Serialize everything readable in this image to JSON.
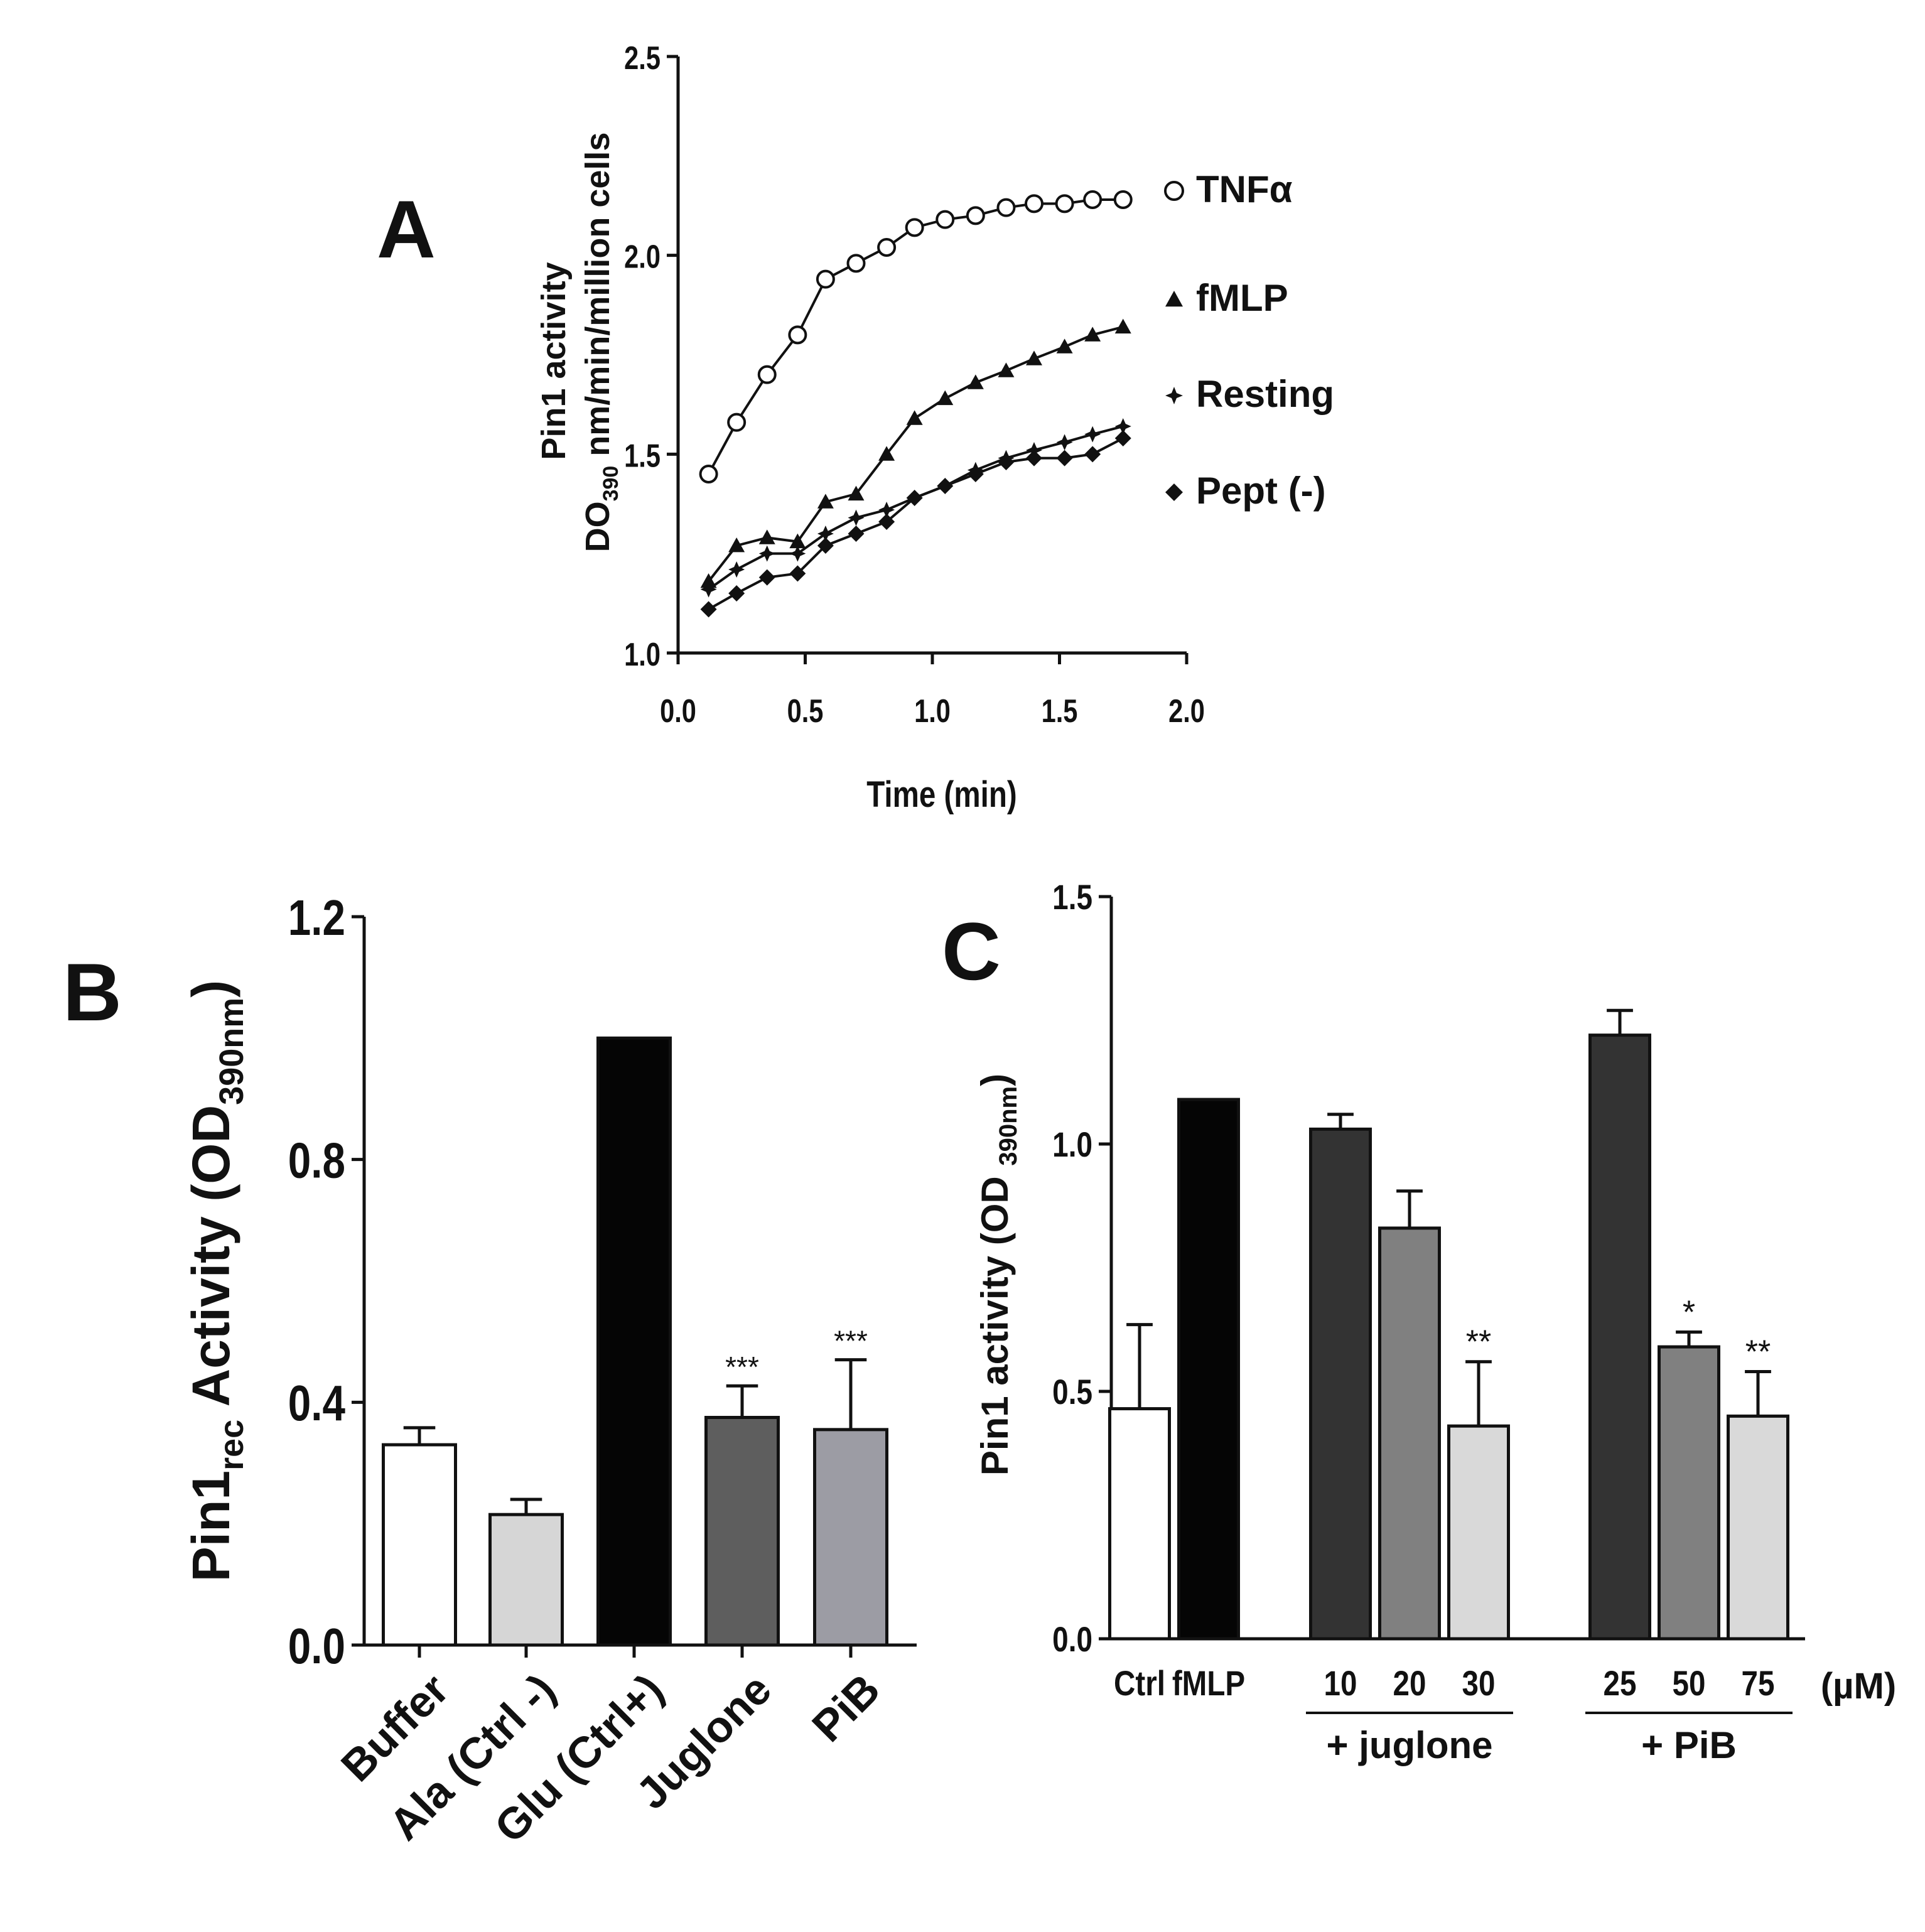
{
  "panels": {
    "a": {
      "letter": "A"
    },
    "b": {
      "letter": "B"
    },
    "c": {
      "letter": "C"
    }
  },
  "colors": {
    "axis": "#111111",
    "white": "#ffffff",
    "light_gray": "#d6d6d6",
    "black": "#050505",
    "dark_gray": "#5e5e5e",
    "mid_gray": "#9c9ca4",
    "charcoal": "#333333",
    "medium": "#808080",
    "pale": "#d9d9d9"
  },
  "chart_data": [
    {
      "id": "A",
      "type": "line",
      "ylabel_line1": "Pin1 activity",
      "ylabel_line2_pre": "DO",
      "ylabel_line2_sub": "390",
      "ylabel_line2_post": " nm/min/million cells",
      "xlabel": "Time (min)",
      "xlim": [
        0.0,
        2.0
      ],
      "ylim": [
        1.0,
        2.5
      ],
      "xticks": [
        "0.0",
        "0.5",
        "1.0",
        "1.5",
        "2.0"
      ],
      "yticks": [
        "1.0",
        "1.5",
        "2.0",
        "2.5"
      ],
      "x": [
        0.12,
        0.23,
        0.35,
        0.47,
        0.58,
        0.7,
        0.82,
        0.93,
        1.05,
        1.17,
        1.29,
        1.4,
        1.52,
        1.63,
        1.75
      ],
      "series": [
        {
          "name": "TNFα",
          "marker": "circle",
          "values": [
            1.45,
            1.58,
            1.7,
            1.8,
            1.94,
            1.98,
            2.02,
            2.07,
            2.09,
            2.1,
            2.12,
            2.13,
            2.13,
            2.14,
            2.14
          ]
        },
        {
          "name": "fMLP",
          "marker": "triangle",
          "values": [
            1.18,
            1.27,
            1.29,
            1.28,
            1.38,
            1.4,
            1.5,
            1.59,
            1.64,
            1.68,
            1.71,
            1.74,
            1.77,
            1.8,
            1.82
          ]
        },
        {
          "name": "Resting",
          "marker": "star",
          "values": [
            1.16,
            1.21,
            1.25,
            1.25,
            1.3,
            1.34,
            1.36,
            1.39,
            1.42,
            1.46,
            1.49,
            1.51,
            1.53,
            1.55,
            1.57
          ]
        },
        {
          "name": "Pept (-)",
          "marker": "diamond",
          "values": [
            1.11,
            1.15,
            1.19,
            1.2,
            1.27,
            1.3,
            1.33,
            1.39,
            1.42,
            1.45,
            1.48,
            1.49,
            1.49,
            1.5,
            1.54
          ]
        }
      ]
    },
    {
      "id": "B",
      "type": "bar",
      "ylabel_pre": "Pin1",
      "ylabel_sub": "rec",
      "ylabel_mid": " Activity (OD",
      "ylabel_sub2": "390nm",
      "ylabel_post": ")",
      "ylim": [
        0.0,
        1.2
      ],
      "yticks": [
        "0.0",
        "0.4",
        "0.8",
        "1.2"
      ],
      "categories": [
        "Buffer",
        "Ala (Ctrl -)",
        "Glu (Ctrl+)",
        "Juglone",
        "PiB"
      ],
      "values": [
        0.33,
        0.215,
        1.0,
        0.375,
        0.355
      ],
      "errors": [
        0.028,
        0.025,
        0.0,
        0.052,
        0.115
      ],
      "significance": [
        "",
        "",
        "",
        "***",
        "***"
      ],
      "fills": [
        "#ffffff",
        "#d6d6d6",
        "#050505",
        "#5e5e5e",
        "#9c9ca4"
      ]
    },
    {
      "id": "C",
      "type": "bar",
      "ylabel_pre": "Pin1 activity (OD ",
      "ylabel_sub": "390nm",
      "ylabel_post": ")",
      "ylim": [
        0.0,
        1.5
      ],
      "yticks": [
        "0.0",
        "0.5",
        "1.0",
        "1.5"
      ],
      "unit_label": "(µM)",
      "categories": [
        "Ctrl",
        "fMLP",
        "10",
        "20",
        "30",
        "25",
        "50",
        "75"
      ],
      "values": [
        0.465,
        1.09,
        1.03,
        0.83,
        0.43,
        1.22,
        0.59,
        0.45
      ],
      "errors": [
        0.17,
        0.0,
        0.03,
        0.075,
        0.13,
        0.05,
        0.03,
        0.09
      ],
      "significance": [
        "",
        "",
        "",
        "",
        "**",
        "",
        "*",
        "**"
      ],
      "fills": [
        "#ffffff",
        "#050505",
        "#333333",
        "#808080",
        "#d9d9d9",
        "#333333",
        "#808080",
        "#d9d9d9"
      ],
      "groups": [
        {
          "label": "+ juglone",
          "from": 2,
          "to": 4
        },
        {
          "label": "+ PiB",
          "from": 5,
          "to": 7
        }
      ]
    }
  ]
}
